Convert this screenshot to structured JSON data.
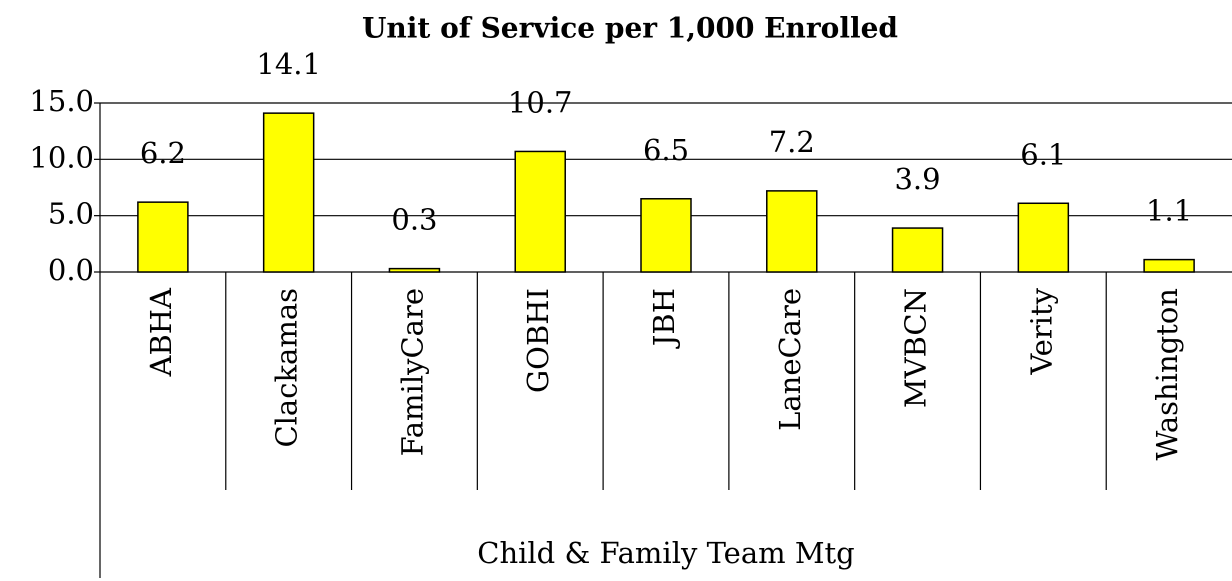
{
  "chart_data": {
    "type": "bar",
    "title": "Unit of Service per 1,000 Enrolled",
    "xlabel": "Child & Family Team Mtg",
    "categories": [
      "ABHA",
      "Clackamas",
      "FamilyCare",
      "GOBHI",
      "JBH",
      "LaneCare",
      "MVBCN",
      "Verity",
      "Washington"
    ],
    "values": [
      6.2,
      14.1,
      0.3,
      10.7,
      6.5,
      7.2,
      3.9,
      6.1,
      1.1
    ],
    "color": "#ffff00",
    "ylim": [
      0,
      15
    ],
    "yticks": [
      {
        "value": 0,
        "label": "0.0"
      },
      {
        "value": 5,
        "label": "5.0"
      },
      {
        "value": 10,
        "label": "10.0"
      },
      {
        "value": 15,
        "label": "15.0"
      }
    ],
    "grid": true
  }
}
